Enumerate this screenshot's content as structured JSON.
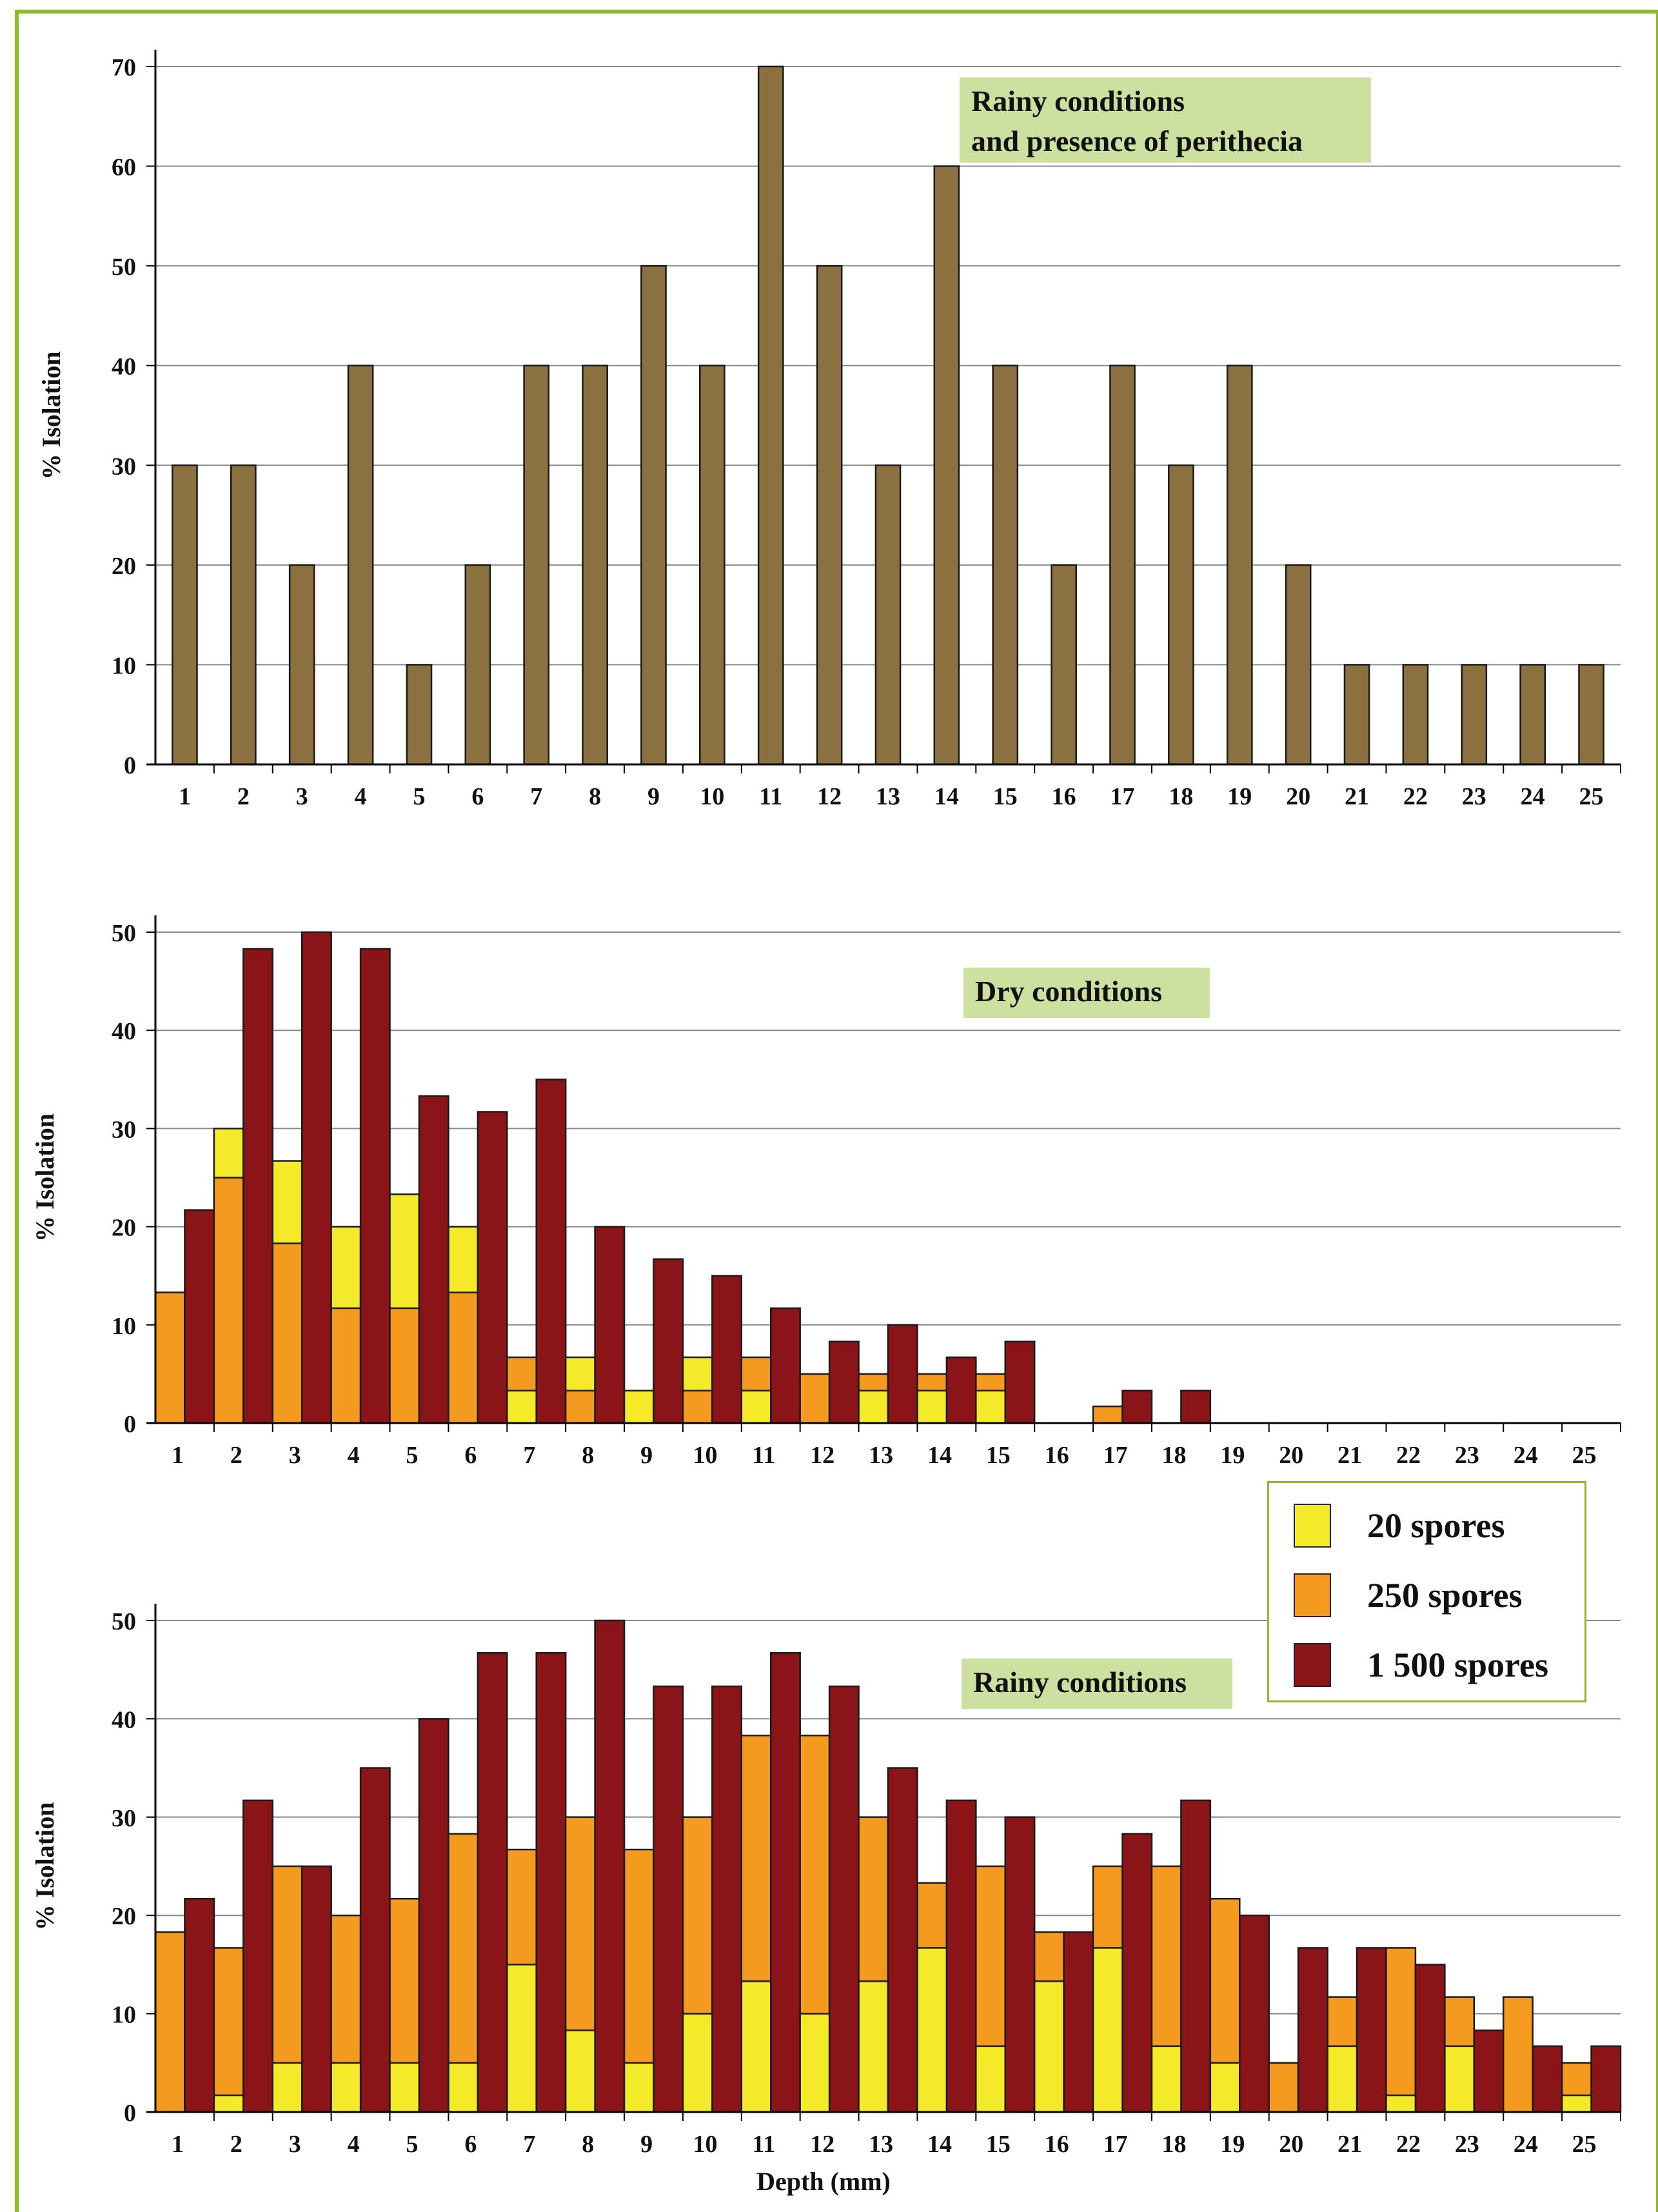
{
  "colors": {
    "frame": "#8fba2b",
    "annotation_bg": "#cce0a0",
    "perithecia": "#8b7040",
    "spores_20": "#f5ea2a",
    "spores_250": "#f39a1f",
    "spores_1500": "#8b1418"
  },
  "legend": {
    "items": [
      {
        "label": "20 spores",
        "color": "#f5ea2a"
      },
      {
        "label": "250 spores",
        "color": "#f39a1f"
      },
      {
        "label": "1 500 spores",
        "color": "#8b1418"
      }
    ]
  },
  "chart_data": [
    {
      "type": "bar",
      "annotation": [
        "Rainy conditions",
        "and presence of perithecia"
      ],
      "ylabel": "% Isolation",
      "xlabel": "",
      "ylim": [
        0,
        70
      ],
      "yticks": [
        0,
        10,
        20,
        30,
        40,
        50,
        60,
        70
      ],
      "categories": [
        "1",
        "2",
        "3",
        "4",
        "5",
        "6",
        "7",
        "8",
        "9",
        "10",
        "11",
        "12",
        "13",
        "14",
        "15",
        "16",
        "17",
        "18",
        "19",
        "20",
        "21",
        "22",
        "23",
        "24",
        "25"
      ],
      "grid": true,
      "series": [
        {
          "color": "#8b7040",
          "values": [
            30,
            30,
            20,
            40,
            10,
            20,
            40,
            40,
            50,
            40,
            70,
            50,
            30,
            60,
            40,
            20,
            40,
            30,
            40,
            20,
            10,
            10,
            10,
            10,
            10
          ]
        }
      ]
    },
    {
      "type": "bar",
      "annotation": [
        "Dry conditions"
      ],
      "ylabel": "% Isolation",
      "xlabel": "",
      "ylim": [
        0,
        50
      ],
      "yticks": [
        0,
        10,
        20,
        30,
        40,
        50
      ],
      "categories": [
        "1",
        "2",
        "3",
        "4",
        "5",
        "6",
        "7",
        "8",
        "9",
        "10",
        "11",
        "12",
        "13",
        "14",
        "15",
        "16",
        "17",
        "18",
        "19",
        "20",
        "21",
        "22",
        "23",
        "24",
        "25"
      ],
      "grid": true,
      "series": [
        {
          "name": "20 spores",
          "color": "#f5ea2a",
          "values": [
            13.3,
            30,
            26.7,
            20,
            23.3,
            20,
            3.3,
            6.7,
            3.3,
            6.7,
            3.3,
            0,
            3.3,
            3.3,
            3.3,
            0,
            0,
            0,
            0,
            0,
            0,
            0,
            0,
            0,
            0
          ]
        },
        {
          "name": "250 spores",
          "color": "#f39a1f",
          "values": [
            13.3,
            25,
            18.3,
            11.7,
            11.7,
            13.3,
            6.7,
            3.3,
            0,
            3.3,
            6.7,
            5,
            5,
            5,
            5,
            0,
            1.7,
            0,
            0,
            0,
            0,
            0,
            0,
            0,
            0
          ]
        },
        {
          "name": "1 500 spores",
          "color": "#8b1418",
          "values": [
            21.7,
            48.3,
            50,
            48.3,
            33.3,
            31.7,
            35,
            20,
            16.7,
            15,
            11.7,
            8.3,
            10,
            6.7,
            8.3,
            0,
            3.3,
            3.3,
            0,
            0,
            0,
            0,
            0,
            0,
            0
          ]
        }
      ]
    },
    {
      "type": "bar",
      "annotation": [
        "Rainy conditions"
      ],
      "ylabel": "% Isolation",
      "xlabel": "Depth (mm)",
      "ylim": [
        0,
        50
      ],
      "yticks": [
        0,
        10,
        20,
        30,
        40,
        50
      ],
      "categories": [
        "1",
        "2",
        "3",
        "4",
        "5",
        "6",
        "7",
        "8",
        "9",
        "10",
        "11",
        "12",
        "13",
        "14",
        "15",
        "16",
        "17",
        "18",
        "19",
        "20",
        "21",
        "22",
        "23",
        "24",
        "25"
      ],
      "grid": true,
      "series": [
        {
          "name": "20 spores",
          "color": "#f5ea2a",
          "values": [
            0,
            1.7,
            5,
            5,
            5,
            5,
            15,
            8.3,
            5,
            10,
            13.3,
            10,
            13.3,
            16.7,
            6.7,
            13.3,
            16.7,
            6.7,
            5,
            5,
            6.7,
            1.7,
            6.7,
            0,
            1.7
          ]
        },
        {
          "name": "250 spores",
          "color": "#f39a1f",
          "values": [
            18.3,
            16.7,
            25,
            20,
            21.7,
            28.3,
            26.7,
            30,
            26.7,
            30,
            38.3,
            38.3,
            30,
            23.3,
            25,
            18.3,
            25,
            25,
            21.7,
            5,
            11.7,
            16.7,
            11.7,
            11.7,
            5
          ]
        },
        {
          "name": "1 500 spores",
          "color": "#8b1418",
          "values": [
            21.7,
            31.7,
            25,
            35,
            40,
            46.7,
            46.7,
            50,
            43.3,
            43.3,
            46.7,
            43.3,
            35,
            31.7,
            30,
            18.3,
            28.3,
            31.7,
            20,
            16.7,
            16.7,
            15,
            8.3,
            6.7,
            6.7
          ]
        }
      ]
    }
  ]
}
